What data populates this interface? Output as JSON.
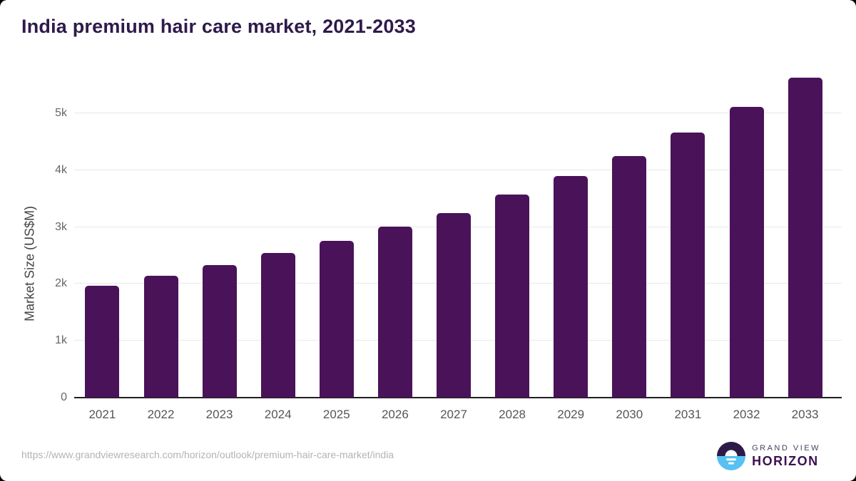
{
  "title": "India premium hair care market, 2021-2033",
  "chart_data": {
    "type": "bar",
    "title": "India premium hair care market, 2021-2033",
    "categories": [
      "2021",
      "2022",
      "2023",
      "2024",
      "2025",
      "2026",
      "2027",
      "2028",
      "2029",
      "2030",
      "2031",
      "2032",
      "2033"
    ],
    "values": [
      1965,
      2145,
      2335,
      2540,
      2755,
      3005,
      3250,
      3565,
      3890,
      4245,
      4655,
      5110,
      5625
    ],
    "xlabel": "",
    "ylabel": "Market Size (US$M)",
    "ylim": [
      0,
      5800
    ],
    "yticks": [
      {
        "label": "0",
        "value": 0
      },
      {
        "label": "1k",
        "value": 1000
      },
      {
        "label": "2k",
        "value": 2000
      },
      {
        "label": "3k",
        "value": 3000
      },
      {
        "label": "4k",
        "value": 4000
      },
      {
        "label": "5k",
        "value": 5000
      }
    ],
    "grid": "horizontal",
    "legend": "none",
    "bar_color": "#4a1258"
  },
  "footer": {
    "url": "https://www.grandviewresearch.com/horizon/outlook/premium-hair-care-market/india",
    "logo": {
      "line1": "GRAND VIEW",
      "line2": "HORIZON",
      "mark_top_color": "#2e1a47",
      "mark_bottom_color": "#56c1f2"
    }
  }
}
